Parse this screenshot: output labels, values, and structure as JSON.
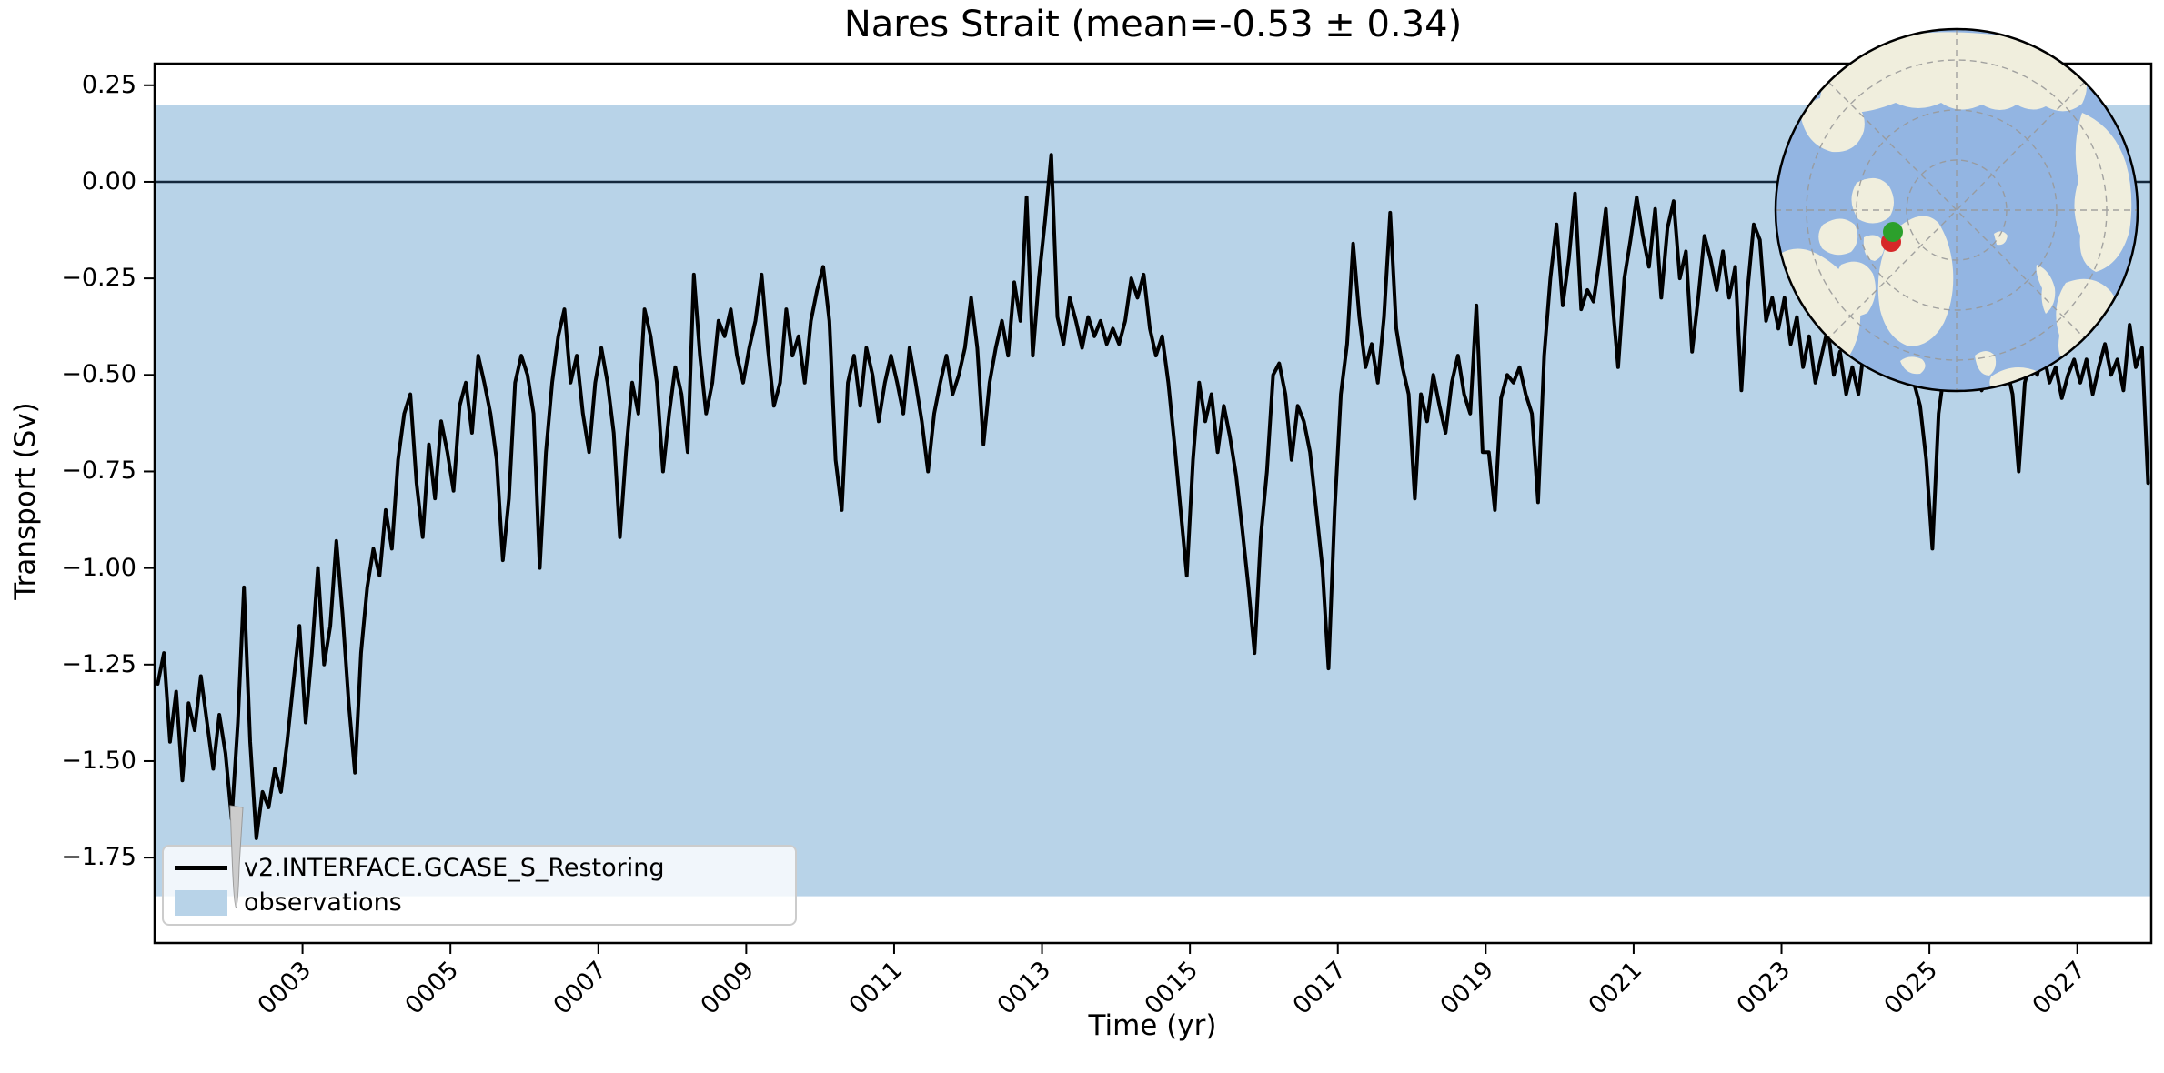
{
  "chart_data": {
    "type": "line",
    "title": "Nares Strait (mean=-0.53 ± 0.34)",
    "xlabel": "Time (yr)",
    "ylabel": "Transport (Sv)",
    "xlim": [
      1.0,
      28.0
    ],
    "ylim": [
      -1.971,
      0.306
    ],
    "grid": false,
    "legend_position": "lower left",
    "zero_line": 0.0,
    "xticks": {
      "values": [
        3,
        5,
        7,
        9,
        11,
        13,
        15,
        17,
        19,
        21,
        23,
        25,
        27
      ],
      "labels": [
        "0003",
        "0005",
        "0007",
        "0009",
        "0011",
        "0013",
        "0015",
        "0017",
        "0019",
        "0021",
        "0023",
        "0025",
        "0027"
      ]
    },
    "yticks": {
      "values": [
        0.25,
        0.0,
        -0.25,
        -0.5,
        -0.75,
        -1.0,
        -1.25,
        -1.5,
        -1.75
      ],
      "labels": [
        "0.25",
        "0.00",
        "−0.25",
        "−0.50",
        "−0.75",
        "−1.00",
        "−1.25",
        "−1.50",
        "−1.75"
      ]
    },
    "band": {
      "name": "observations",
      "color": "#b8d3e8",
      "y_top": 0.2,
      "y_bottom": -1.85
    },
    "series": [
      {
        "name": "v2.INTERFACE.GCASE_S_Restoring",
        "color": "#000000",
        "x_start": 1.0417,
        "x_step": 0.08333,
        "values": [
          -1.3,
          -1.22,
          -1.45,
          -1.32,
          -1.55,
          -1.35,
          -1.42,
          -1.28,
          -1.4,
          -1.52,
          -1.38,
          -1.48,
          -1.65,
          -1.4,
          -1.05,
          -1.45,
          -1.7,
          -1.58,
          -1.62,
          -1.52,
          -1.58,
          -1.45,
          -1.3,
          -1.15,
          -1.4,
          -1.22,
          -1.0,
          -1.25,
          -1.15,
          -0.93,
          -1.12,
          -1.35,
          -1.53,
          -1.22,
          -1.05,
          -0.95,
          -1.02,
          -0.85,
          -0.95,
          -0.72,
          -0.6,
          -0.55,
          -0.78,
          -0.92,
          -0.68,
          -0.82,
          -0.62,
          -0.7,
          -0.8,
          -0.58,
          -0.52,
          -0.65,
          -0.45,
          -0.52,
          -0.6,
          -0.72,
          -0.98,
          -0.82,
          -0.52,
          -0.45,
          -0.5,
          -0.6,
          -1.0,
          -0.7,
          -0.52,
          -0.4,
          -0.33,
          -0.52,
          -0.45,
          -0.6,
          -0.7,
          -0.52,
          -0.43,
          -0.52,
          -0.65,
          -0.92,
          -0.7,
          -0.52,
          -0.6,
          -0.33,
          -0.4,
          -0.52,
          -0.75,
          -0.6,
          -0.48,
          -0.55,
          -0.7,
          -0.24,
          -0.45,
          -0.6,
          -0.52,
          -0.36,
          -0.4,
          -0.33,
          -0.45,
          -0.52,
          -0.43,
          -0.36,
          -0.24,
          -0.43,
          -0.58,
          -0.52,
          -0.33,
          -0.45,
          -0.4,
          -0.52,
          -0.36,
          -0.28,
          -0.22,
          -0.36,
          -0.72,
          -0.85,
          -0.52,
          -0.45,
          -0.58,
          -0.43,
          -0.5,
          -0.62,
          -0.52,
          -0.45,
          -0.52,
          -0.6,
          -0.43,
          -0.52,
          -0.62,
          -0.75,
          -0.6,
          -0.52,
          -0.45,
          -0.55,
          -0.5,
          -0.43,
          -0.3,
          -0.43,
          -0.68,
          -0.52,
          -0.43,
          -0.36,
          -0.45,
          -0.26,
          -0.36,
          -0.04,
          -0.45,
          -0.25,
          -0.1,
          0.07,
          -0.35,
          -0.42,
          -0.3,
          -0.36,
          -0.43,
          -0.35,
          -0.4,
          -0.36,
          -0.42,
          -0.38,
          -0.42,
          -0.36,
          -0.25,
          -0.3,
          -0.24,
          -0.38,
          -0.45,
          -0.4,
          -0.52,
          -0.68,
          -0.85,
          -1.02,
          -0.72,
          -0.52,
          -0.62,
          -0.55,
          -0.7,
          -0.58,
          -0.66,
          -0.76,
          -0.9,
          -1.05,
          -1.22,
          -0.92,
          -0.75,
          -0.5,
          -0.47,
          -0.55,
          -0.72,
          -0.58,
          -0.62,
          -0.7,
          -0.85,
          -1.0,
          -1.26,
          -0.85,
          -0.55,
          -0.42,
          -0.16,
          -0.35,
          -0.48,
          -0.42,
          -0.52,
          -0.35,
          -0.08,
          -0.38,
          -0.48,
          -0.55,
          -0.82,
          -0.55,
          -0.62,
          -0.5,
          -0.58,
          -0.65,
          -0.52,
          -0.45,
          -0.55,
          -0.6,
          -0.32,
          -0.7,
          -0.7,
          -0.85,
          -0.56,
          -0.5,
          -0.52,
          -0.48,
          -0.55,
          -0.6,
          -0.83,
          -0.45,
          -0.25,
          -0.11,
          -0.32,
          -0.2,
          -0.03,
          -0.33,
          -0.28,
          -0.31,
          -0.2,
          -0.07,
          -0.3,
          -0.48,
          -0.25,
          -0.15,
          -0.04,
          -0.14,
          -0.22,
          -0.07,
          -0.3,
          -0.12,
          -0.05,
          -0.25,
          -0.18,
          -0.44,
          -0.3,
          -0.14,
          -0.2,
          -0.28,
          -0.18,
          -0.3,
          -0.22,
          -0.54,
          -0.28,
          -0.11,
          -0.15,
          -0.36,
          -0.3,
          -0.38,
          -0.3,
          -0.42,
          -0.35,
          -0.48,
          -0.4,
          -0.52,
          -0.45,
          -0.38,
          -0.5,
          -0.44,
          -0.55,
          -0.48,
          -0.55,
          -0.42,
          -0.38,
          -0.45,
          -0.4,
          -0.48,
          -0.43,
          -0.5,
          -0.45,
          -0.52,
          -0.58,
          -0.72,
          -0.95,
          -0.6,
          -0.48,
          -0.44,
          -0.5,
          -0.46,
          -0.52,
          -0.48,
          -0.54,
          -0.5,
          -0.44,
          -0.52,
          -0.48,
          -0.55,
          -0.75,
          -0.52,
          -0.46,
          -0.5,
          -0.44,
          -0.52,
          -0.48,
          -0.56,
          -0.5,
          -0.46,
          -0.52,
          -0.46,
          -0.55,
          -0.48,
          -0.42,
          -0.5,
          -0.46,
          -0.54,
          -0.37,
          -0.48,
          -0.43,
          -0.78
        ]
      }
    ]
  },
  "legend": {
    "entries": [
      {
        "label": "v2.INTERFACE.GCASE_S_Restoring",
        "swatch": "line",
        "color": "#000000"
      },
      {
        "label": "observations",
        "swatch": "patch",
        "color": "#b8d3e8"
      }
    ]
  },
  "inset_map": {
    "type": "north-polar-stereographic-locator",
    "ocean_color": "#93b5e2",
    "land_color": "#f0eedd",
    "graticule_color": "#999999",
    "marker_green": "#2ca02c",
    "marker_red": "#d62728"
  },
  "cursor": {
    "color": "#cccccc"
  }
}
